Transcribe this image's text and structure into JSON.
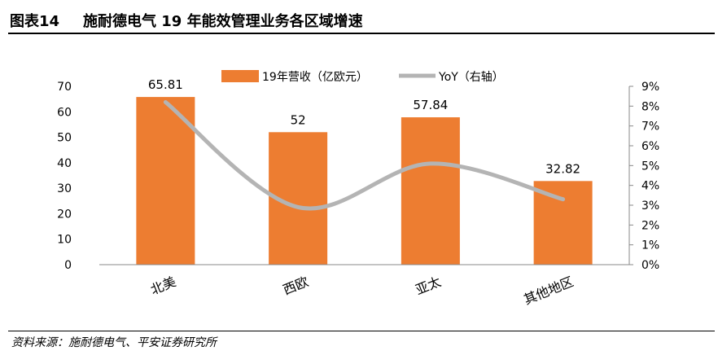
{
  "header": {
    "figure_no": "图表14",
    "title": "施耐德电气 19 年能效管理业务各区域增速"
  },
  "footer": {
    "source": "资料来源：施耐德电气、平安证券研究所"
  },
  "chart_data": {
    "type": "bar",
    "title": "",
    "categories": [
      "北美",
      "西欧",
      "亚太",
      "其他地区"
    ],
    "series": [
      {
        "name": "19年营收（亿欧元）",
        "type": "bar",
        "axis": "left",
        "values": [
          65.81,
          52,
          57.84,
          32.82
        ],
        "labels": [
          "65.81",
          "52",
          "57.84",
          "32.82"
        ]
      },
      {
        "name": "YoY（右轴）",
        "type": "line",
        "axis": "right",
        "smooth": true,
        "values": [
          8.2,
          2.9,
          5.1,
          3.3
        ]
      }
    ],
    "y_left": {
      "min": 0,
      "max": 70,
      "ticks": [
        "0",
        "10",
        "20",
        "30",
        "40",
        "50",
        "60",
        "70"
      ]
    },
    "y_right": {
      "min": 0,
      "max": 9,
      "ticks": [
        "0%",
        "1%",
        "2%",
        "3%",
        "4%",
        "5%",
        "6%",
        "7%",
        "8%",
        "9%"
      ]
    },
    "legend_position": "top",
    "grid": false,
    "colors": {
      "bar": "#ED7D31",
      "line": "#B4B4B4",
      "axis": "#888888"
    }
  }
}
